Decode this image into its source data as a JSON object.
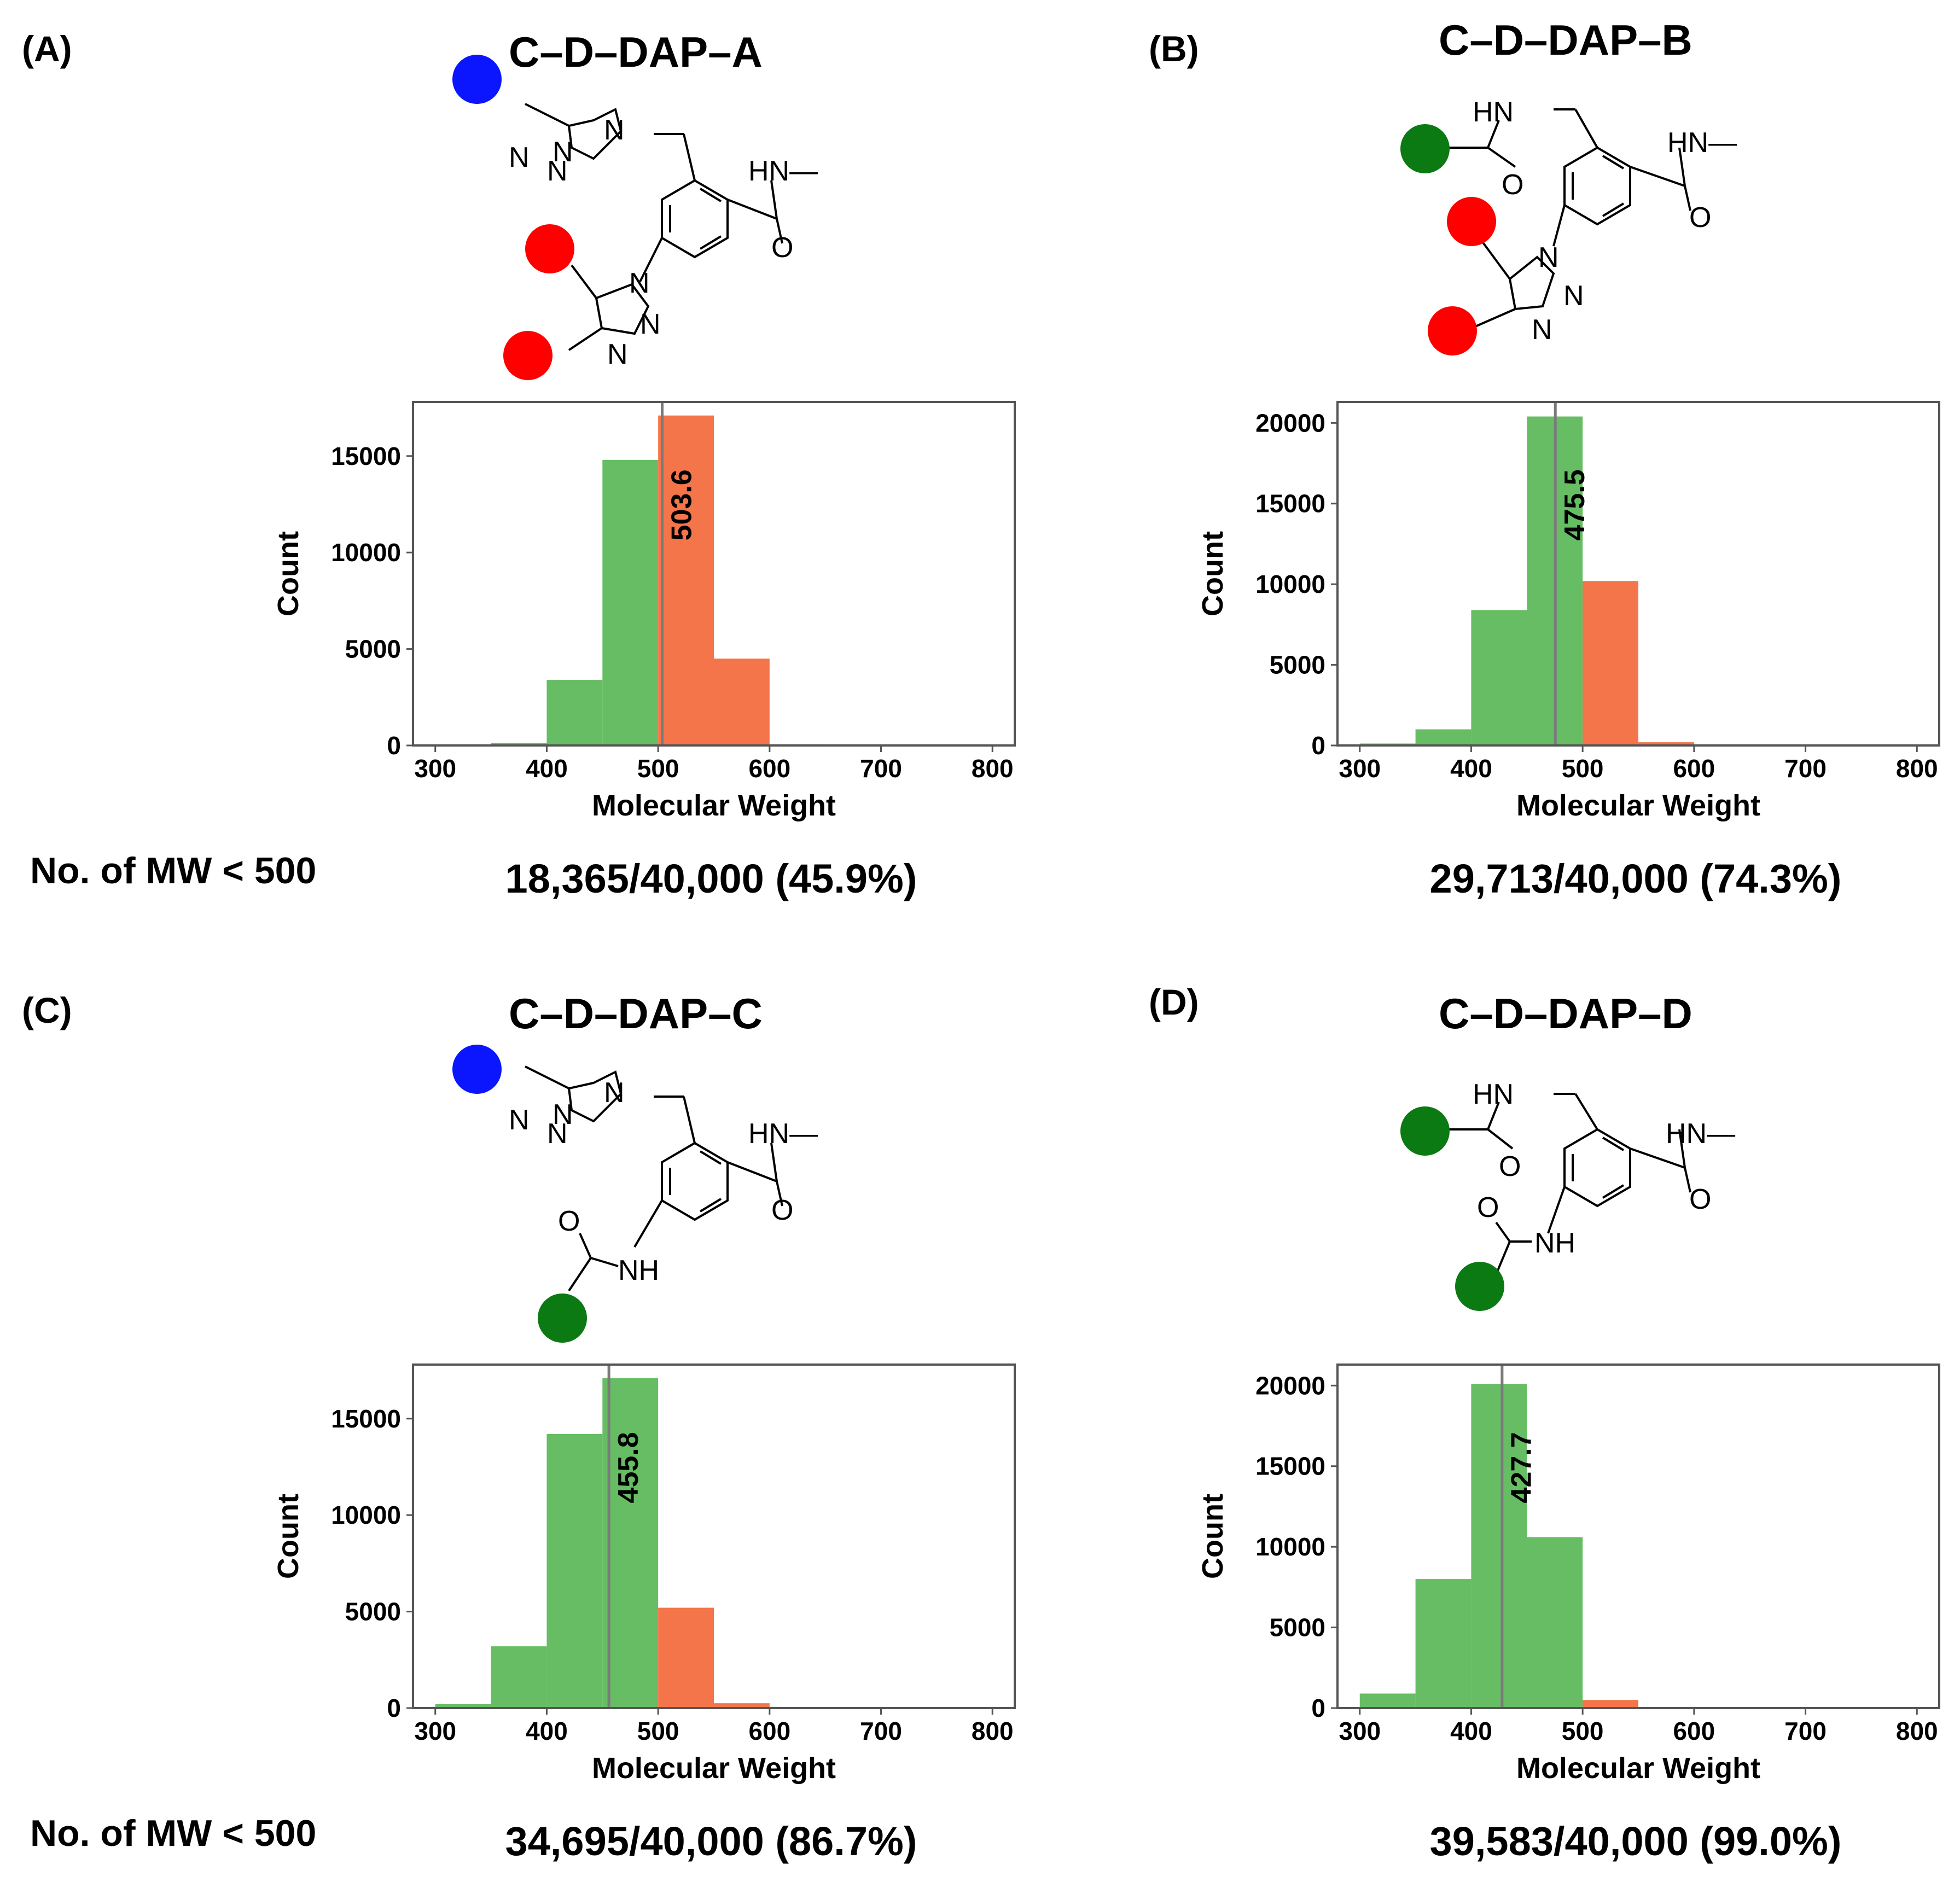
{
  "row_labels": [
    "No. of MW < 500",
    "No. of MW < 500"
  ],
  "colors": {
    "below": "#66bd63",
    "above": "#f4754a",
    "median_line": "#7a7a7a",
    "axis": "#555555",
    "blue_group": "#0b16ff",
    "red_group": "#ff0000",
    "green_group": "#0b7a12"
  },
  "panels": [
    {
      "label": "(A)",
      "title": "C–D–DAP–A",
      "summary": "18,365/40,000 (45.9%)",
      "structure": {
        "groups": [
          "blue",
          "red",
          "red"
        ],
        "atom_labels": [
          "N",
          "N",
          "N",
          "N",
          "HN—",
          "O",
          "N",
          "N",
          "N"
        ]
      }
    },
    {
      "label": "(B)",
      "title": "C–D–DAP–B",
      "summary": "29,713/40,000 (74.3%)",
      "structure": {
        "groups": [
          "green",
          "red",
          "red"
        ],
        "atom_labels": [
          "HN",
          "O",
          "HN—",
          "O",
          "N",
          "N",
          "N"
        ]
      }
    },
    {
      "label": "(C)",
      "title": "C–D–DAP–C",
      "summary": "34,695/40,000  (86.7%)",
      "structure": {
        "groups": [
          "blue",
          "green"
        ],
        "atom_labels": [
          "N",
          "N",
          "N",
          "N",
          "HN—",
          "O",
          "O",
          "NH"
        ]
      }
    },
    {
      "label": "(D)",
      "title": "C–D–DAP–D",
      "summary": "39,583/40,000 (99.0%)",
      "structure": {
        "groups": [
          "green",
          "green"
        ],
        "atom_labels": [
          "HN",
          "O",
          "HN—",
          "O",
          "O",
          "NH"
        ]
      }
    }
  ],
  "chart_data": [
    {
      "type": "bar",
      "panel": "A",
      "xlabel": "Molecular Weight",
      "ylabel": "Count",
      "xlim": [
        280,
        820
      ],
      "ylim": [
        0,
        17800
      ],
      "xticks": [
        300,
        400,
        500,
        600,
        700,
        800
      ],
      "yticks": [
        0,
        5000,
        10000,
        15000
      ],
      "bin_width": 50,
      "bins": [
        {
          "x": 300,
          "count": 10,
          "color": "below"
        },
        {
          "x": 350,
          "count": 130,
          "color": "below"
        },
        {
          "x": 400,
          "count": 3400,
          "color": "below"
        },
        {
          "x": 450,
          "count": 14800,
          "color": "below"
        },
        {
          "x": 500,
          "count": 17100,
          "color": "above"
        },
        {
          "x": 550,
          "count": 4500,
          "color": "above"
        },
        {
          "x": 600,
          "count": 60,
          "color": "above"
        },
        {
          "x": 650,
          "count": 5,
          "color": "above"
        }
      ],
      "median": 503.6,
      "median_label": "503.6"
    },
    {
      "type": "bar",
      "panel": "B",
      "xlabel": "Molecular Weight",
      "ylabel": "Count",
      "xlim": [
        280,
        820
      ],
      "ylim": [
        0,
        21300
      ],
      "xticks": [
        300,
        400,
        500,
        600,
        700,
        800
      ],
      "yticks": [
        0,
        5000,
        10000,
        15000,
        20000
      ],
      "bin_width": 50,
      "bins": [
        {
          "x": 300,
          "count": 120,
          "color": "below"
        },
        {
          "x": 350,
          "count": 1000,
          "color": "below"
        },
        {
          "x": 400,
          "count": 8400,
          "color": "below"
        },
        {
          "x": 450,
          "count": 20400,
          "color": "below"
        },
        {
          "x": 500,
          "count": 10200,
          "color": "above"
        },
        {
          "x": 550,
          "count": 200,
          "color": "above"
        },
        {
          "x": 600,
          "count": 5,
          "color": "above"
        }
      ],
      "median": 475.5,
      "median_label": "475.5"
    },
    {
      "type": "bar",
      "panel": "C",
      "xlabel": "Molecular Weight",
      "ylabel": "Count",
      "xlim": [
        280,
        820
      ],
      "ylim": [
        0,
        17800
      ],
      "xticks": [
        300,
        400,
        500,
        600,
        700,
        800
      ],
      "yticks": [
        0,
        5000,
        10000,
        15000
      ],
      "bin_width": 50,
      "bins": [
        {
          "x": 300,
          "count": 200,
          "color": "below"
        },
        {
          "x": 350,
          "count": 3200,
          "color": "below"
        },
        {
          "x": 400,
          "count": 14200,
          "color": "below"
        },
        {
          "x": 450,
          "count": 17100,
          "color": "below"
        },
        {
          "x": 500,
          "count": 5200,
          "color": "above"
        },
        {
          "x": 550,
          "count": 250,
          "color": "above"
        },
        {
          "x": 600,
          "count": 10,
          "color": "above"
        }
      ],
      "median": 455.8,
      "median_label": "455.8"
    },
    {
      "type": "bar",
      "panel": "D",
      "xlabel": "Molecular Weight",
      "ylabel": "Count",
      "xlim": [
        280,
        820
      ],
      "ylim": [
        0,
        21300
      ],
      "xticks": [
        300,
        400,
        500,
        600,
        700,
        800
      ],
      "yticks": [
        0,
        5000,
        10000,
        15000,
        20000
      ],
      "bin_width": 50,
      "bins": [
        {
          "x": 300,
          "count": 900,
          "color": "below"
        },
        {
          "x": 350,
          "count": 8000,
          "color": "below"
        },
        {
          "x": 400,
          "count": 20100,
          "color": "below"
        },
        {
          "x": 450,
          "count": 10600,
          "color": "below"
        },
        {
          "x": 500,
          "count": 500,
          "color": "above"
        },
        {
          "x": 550,
          "count": 10,
          "color": "above"
        }
      ],
      "median": 427.7,
      "median_label": "427.7"
    }
  ]
}
